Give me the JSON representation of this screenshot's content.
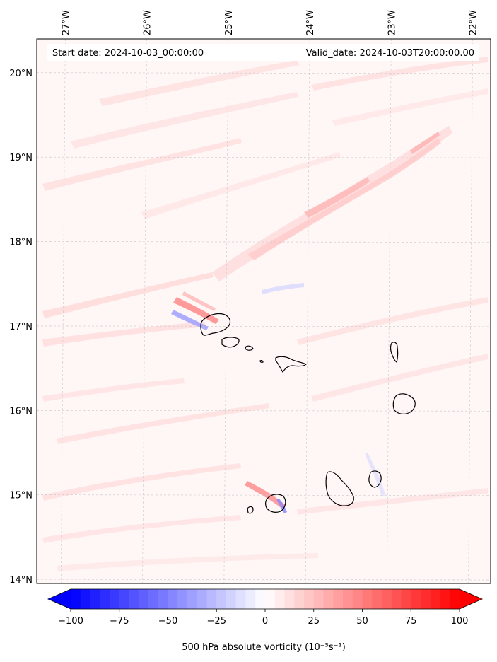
{
  "map": {
    "start_date_text": "Start date: 2024-10-03_00:00:00",
    "valid_date_text": "Valid_date: 2024-10-03T20:00:00.00",
    "lon_ticks": [
      {
        "value": -27,
        "label": "27°W"
      },
      {
        "value": -26,
        "label": "26°W"
      },
      {
        "value": -25,
        "label": "25°W"
      },
      {
        "value": -24,
        "label": "24°W"
      },
      {
        "value": -23,
        "label": "23°W"
      },
      {
        "value": -22,
        "label": "22°W"
      }
    ],
    "lat_ticks": [
      {
        "value": 20,
        "label": "20°N"
      },
      {
        "value": 19,
        "label": "19°N"
      },
      {
        "value": 18,
        "label": "18°N"
      },
      {
        "value": 17,
        "label": "17°N"
      },
      {
        "value": 16,
        "label": "16°N"
      },
      {
        "value": 15,
        "label": "15°N"
      },
      {
        "value": 14,
        "label": "14°N"
      }
    ],
    "lon_range": [
      -27.35,
      -21.78
    ],
    "lat_range": [
      13.95,
      20.4
    ],
    "gridlines": true,
    "field_background_color": "#fff6f6",
    "coastline_color": "#000000"
  },
  "colorbar": {
    "label": "500 hPa absolute vorticity (10⁻⁵s⁻¹)",
    "ticks": [
      {
        "value": -100,
        "label": "−100"
      },
      {
        "value": -75,
        "label": "−75"
      },
      {
        "value": -50,
        "label": "−50"
      },
      {
        "value": -25,
        "label": "−25"
      },
      {
        "value": 0,
        "label": "0"
      },
      {
        "value": 25,
        "label": "25"
      },
      {
        "value": 50,
        "label": "50"
      },
      {
        "value": 75,
        "label": "75"
      },
      {
        "value": 100,
        "label": "100"
      }
    ],
    "range": [
      -100,
      100
    ],
    "colormap": "bwr",
    "extend": "both",
    "low_color": "#0000ff",
    "mid_color": "#ffffff",
    "high_color": "#ff0000"
  }
}
